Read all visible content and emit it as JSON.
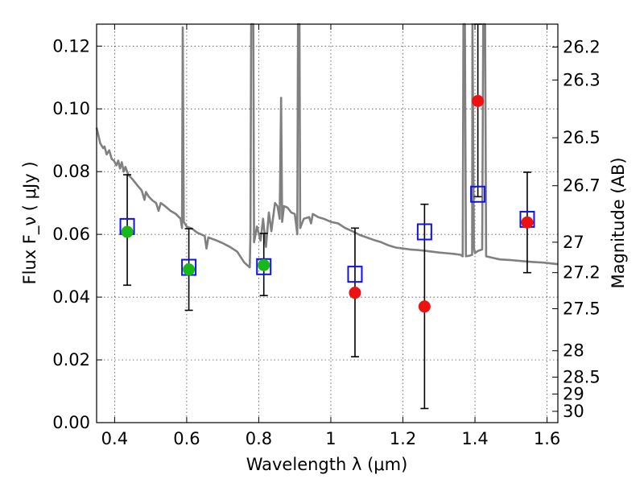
{
  "chart_data": {
    "type": "scatter",
    "xlabel": "Wavelength  λ (μm)",
    "ylabel": "Flux  F_ν  ( μJy )",
    "y2label": "Magnitude (AB)",
    "xlim": [
      0.35,
      1.63
    ],
    "ylim": [
      0.0,
      0.127
    ],
    "grid": true,
    "x_ticks": [
      0.4,
      0.6,
      0.8,
      1.0,
      1.2,
      1.4,
      1.6
    ],
    "x_tick_labels": [
      "0.4",
      "0.6",
      "0.8",
      "1",
      "1.2",
      "1.4",
      "1.6"
    ],
    "y_ticks": [
      0.0,
      0.02,
      0.04,
      0.06,
      0.08,
      0.1,
      0.12
    ],
    "y_tick_labels": [
      "0.00",
      "0.02",
      "0.04",
      "0.06",
      "0.08",
      "0.10",
      "0.12"
    ],
    "y2_ticks": [
      {
        "flux": 0.1197,
        "label": "26.2"
      },
      {
        "flux": 0.1092,
        "label": "26.3"
      },
      {
        "flux": 0.0908,
        "label": "26.5"
      },
      {
        "flux": 0.0755,
        "label": "26.7"
      },
      {
        "flux": 0.0575,
        "label": "27"
      },
      {
        "flux": 0.0478,
        "label": "27.2"
      },
      {
        "flux": 0.0363,
        "label": "27.5"
      },
      {
        "flux": 0.0229,
        "label": "28"
      },
      {
        "flux": 0.0145,
        "label": "28.5"
      },
      {
        "flux": 0.0091,
        "label": "29"
      },
      {
        "flux": 0.0036,
        "label": "30"
      }
    ],
    "colors": {
      "spectrum": "#808080",
      "detection": "#18b818",
      "nir_detection": "#ee1111",
      "model_box": "#1010ee",
      "errorbar": "#000000"
    },
    "series": [
      {
        "marker": "green-circle",
        "points": [
          {
            "x": 0.435,
            "y": 0.0608,
            "err_low": 0.0438,
            "err_high": 0.079
          },
          {
            "x": 0.606,
            "y": 0.0488,
            "err_low": 0.0358,
            "err_high": 0.0618
          },
          {
            "x": 0.814,
            "y": 0.0502,
            "err_low": 0.0405,
            "err_high": 0.0603
          }
        ]
      },
      {
        "marker": "red-circle",
        "points": [
          {
            "x": 1.067,
            "y": 0.0414,
            "err_low": 0.021,
            "err_high": 0.062
          },
          {
            "x": 1.26,
            "y": 0.037,
            "err_low": 0.0045,
            "err_high": 0.0696
          },
          {
            "x": 1.408,
            "y": 0.1025,
            "err_low": 0.072,
            "err_high": 0.127
          },
          {
            "x": 1.545,
            "y": 0.0638,
            "err_low": 0.0478,
            "err_high": 0.0798
          }
        ]
      },
      {
        "marker": "blue-open-square",
        "points": [
          {
            "x": 0.435,
            "y": 0.0625
          },
          {
            "x": 0.606,
            "y": 0.0495
          },
          {
            "x": 0.814,
            "y": 0.0497
          },
          {
            "x": 1.067,
            "y": 0.0473
          },
          {
            "x": 1.26,
            "y": 0.0608
          },
          {
            "x": 1.408,
            "y": 0.0728
          },
          {
            "x": 1.545,
            "y": 0.0648
          }
        ]
      },
      {
        "marker": "gray-line",
        "points": [
          [
            0.35,
            0.094
          ],
          [
            0.36,
            0.089
          ],
          [
            0.368,
            0.0875
          ],
          [
            0.372,
            0.088
          ],
          [
            0.378,
            0.0855
          ],
          [
            0.385,
            0.0868
          ],
          [
            0.392,
            0.084
          ],
          [
            0.398,
            0.0835
          ],
          [
            0.405,
            0.082
          ],
          [
            0.41,
            0.0835
          ],
          [
            0.415,
            0.081
          ],
          [
            0.42,
            0.083
          ],
          [
            0.425,
            0.08
          ],
          [
            0.43,
            0.0815
          ],
          [
            0.438,
            0.079
          ],
          [
            0.45,
            0.0775
          ],
          [
            0.462,
            0.0758
          ],
          [
            0.475,
            0.074
          ],
          [
            0.483,
            0.071
          ],
          [
            0.487,
            0.0735
          ],
          [
            0.495,
            0.072
          ],
          [
            0.505,
            0.0708
          ],
          [
            0.515,
            0.07
          ],
          [
            0.522,
            0.0675
          ],
          [
            0.528,
            0.07
          ],
          [
            0.54,
            0.069
          ],
          [
            0.555,
            0.0675
          ],
          [
            0.57,
            0.0665
          ],
          [
            0.583,
            0.065
          ],
          [
            0.587,
            0.062
          ],
          [
            0.589,
            0.126
          ],
          [
            0.592,
            0.064
          ],
          [
            0.6,
            0.0625
          ],
          [
            0.615,
            0.0618
          ],
          [
            0.63,
            0.0605
          ],
          [
            0.65,
            0.0595
          ],
          [
            0.655,
            0.0555
          ],
          [
            0.66,
            0.059
          ],
          [
            0.68,
            0.0582
          ],
          [
            0.7,
            0.0572
          ],
          [
            0.72,
            0.056
          ],
          [
            0.74,
            0.0545
          ],
          [
            0.76,
            0.051
          ],
          [
            0.77,
            0.05
          ],
          [
            0.775,
            0.0495
          ],
          [
            0.777,
            0.06
          ],
          [
            0.779,
            0.127
          ],
          [
            0.785,
            0.127
          ],
          [
            0.787,
            0.0575
          ],
          [
            0.795,
            0.0625
          ],
          [
            0.805,
            0.058
          ],
          [
            0.812,
            0.065
          ],
          [
            0.82,
            0.056
          ],
          [
            0.828,
            0.067
          ],
          [
            0.835,
            0.061
          ],
          [
            0.845,
            0.07
          ],
          [
            0.852,
            0.069
          ],
          [
            0.858,
            0.065
          ],
          [
            0.862,
            0.1035
          ],
          [
            0.865,
            0.064
          ],
          [
            0.87,
            0.069
          ],
          [
            0.88,
            0.0685
          ],
          [
            0.89,
            0.067
          ],
          [
            0.9,
            0.0665
          ],
          [
            0.905,
            0.062
          ],
          [
            0.907,
            0.06
          ],
          [
            0.909,
            0.127
          ],
          [
            0.913,
            0.127
          ],
          [
            0.915,
            0.062
          ],
          [
            0.925,
            0.065
          ],
          [
            0.94,
            0.0655
          ],
          [
            0.945,
            0.0635
          ],
          [
            0.95,
            0.0665
          ],
          [
            0.965,
            0.0655
          ],
          [
            0.98,
            0.065
          ],
          [
            1.0,
            0.064
          ],
          [
            1.02,
            0.0635
          ],
          [
            1.04,
            0.062
          ],
          [
            1.06,
            0.061
          ],
          [
            1.08,
            0.0598
          ],
          [
            1.1,
            0.059
          ],
          [
            1.12,
            0.0582
          ],
          [
            1.14,
            0.0575
          ],
          [
            1.16,
            0.0565
          ],
          [
            1.18,
            0.0558
          ],
          [
            1.2,
            0.0555
          ],
          [
            1.22,
            0.0552
          ],
          [
            1.24,
            0.055
          ],
          [
            1.26,
            0.0548
          ],
          [
            1.28,
            0.0545
          ],
          [
            1.3,
            0.0542
          ],
          [
            1.32,
            0.054
          ],
          [
            1.34,
            0.0538
          ],
          [
            1.36,
            0.0535
          ],
          [
            1.366,
            0.053
          ],
          [
            1.368,
            0.127
          ],
          [
            1.372,
            0.127
          ],
          [
            1.375,
            0.053
          ],
          [
            1.385,
            0.0532
          ],
          [
            1.392,
            0.0535
          ],
          [
            1.393,
            0.127
          ],
          [
            1.397,
            0.056
          ],
          [
            1.4,
            0.054
          ],
          [
            1.405,
            0.0545
          ],
          [
            1.41,
            0.0548
          ],
          [
            1.42,
            0.0552
          ],
          [
            1.423,
            0.127
          ],
          [
            1.428,
            0.127
          ],
          [
            1.431,
            0.053
          ],
          [
            1.45,
            0.0525
          ],
          [
            1.47,
            0.052
          ],
          [
            1.5,
            0.0518
          ],
          [
            1.53,
            0.0515
          ],
          [
            1.56,
            0.0512
          ],
          [
            1.59,
            0.051
          ],
          [
            1.63,
            0.0505
          ]
        ]
      }
    ]
  }
}
